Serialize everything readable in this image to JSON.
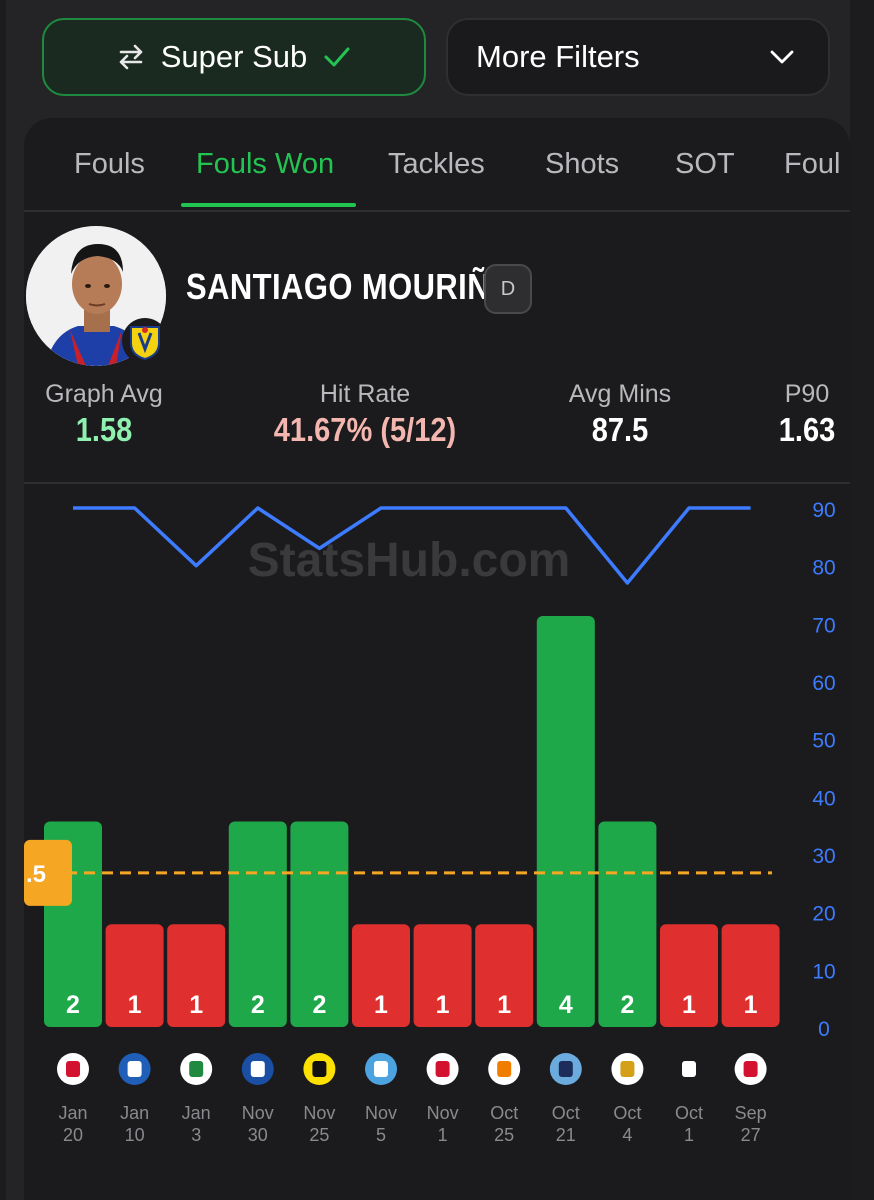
{
  "filters": {
    "super_sub_label": "Super Sub",
    "more_filters_label": "More Filters",
    "active_color": "#23c552"
  },
  "tabs": [
    {
      "label": "Fouls",
      "active": false
    },
    {
      "label": "Fouls Won",
      "active": true
    },
    {
      "label": "Tackles",
      "active": false
    },
    {
      "label": "Shots",
      "active": false
    },
    {
      "label": "SOT",
      "active": false
    },
    {
      "label": "Foul",
      "active": false
    }
  ],
  "player": {
    "name": "SANTIAGO MOURIÑO",
    "position": "D",
    "club_icon": "villarreal-crest-icon"
  },
  "stats": [
    {
      "label": "Graph Avg",
      "value": "1.58",
      "color": "#8ff0b0"
    },
    {
      "label": "Hit Rate",
      "value": "41.67% (5/12)",
      "color": "#f4b7b0"
    },
    {
      "label": "Avg Mins",
      "value": "87.5",
      "color": "#ffffff"
    },
    {
      "label": "P90",
      "value": "1.63",
      "color": "#ffffff"
    }
  ],
  "watermark": "StatsHub.com",
  "chart_data": {
    "type": "bar",
    "line_value_label_max": 4,
    "threshold": 1.5,
    "threshold_label": ".5",
    "right_axis": {
      "ticks": [
        0,
        10,
        20,
        30,
        40,
        50,
        60,
        70,
        80,
        90
      ],
      "range": [
        0,
        90
      ],
      "color": "#3d7bff"
    },
    "categories": [
      {
        "month": "Jan",
        "day": "20",
        "opponent_icon": "ajax-icon"
      },
      {
        "month": "Jan",
        "day": "10",
        "opponent_icon": "alaves-icon"
      },
      {
        "month": "Jan",
        "day": "3",
        "opponent_icon": "elche-icon"
      },
      {
        "month": "Nov",
        "day": "30",
        "opponent_icon": "real-sociedad-icon"
      },
      {
        "month": "Nov",
        "day": "25",
        "opponent_icon": "bvb-icon"
      },
      {
        "month": "Nov",
        "day": "5",
        "opponent_icon": "pafos-icon"
      },
      {
        "month": "Nov",
        "day": "1",
        "opponent_icon": "rayo-vallecano-icon"
      },
      {
        "month": "Oct",
        "day": "25",
        "opponent_icon": "valencia-icon"
      },
      {
        "month": "Oct",
        "day": "21",
        "opponent_icon": "man-city-icon"
      },
      {
        "month": "Oct",
        "day": "4",
        "opponent_icon": "real-madrid-icon"
      },
      {
        "month": "Oct",
        "day": "1",
        "opponent_icon": "juventus-icon"
      },
      {
        "month": "Sep",
        "day": "27",
        "opponent_icon": "athletic-club-icon"
      }
    ],
    "fouls_won": [
      2,
      1,
      1,
      2,
      2,
      1,
      1,
      1,
      4,
      2,
      1,
      1
    ],
    "minutes": [
      90,
      90,
      80,
      90,
      83,
      90,
      90,
      90,
      90,
      77,
      90,
      90
    ],
    "hit_color": "#1fa84a",
    "miss_color": "#e02f2f",
    "threshold_color": "#f5a623",
    "minutes_line_color": "#3d7bff"
  }
}
